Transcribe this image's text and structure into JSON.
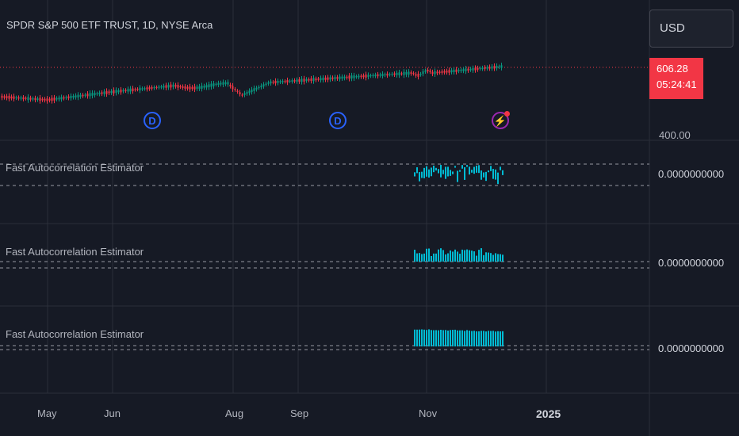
{
  "header": {
    "title": "SPDR S&P 500 ETF TRUST, 1D, NYSE Arca",
    "currency_button": "USD"
  },
  "price_axis": {
    "last_price": "606.28",
    "countdown": "05:24:41",
    "partial_tick": "400.00"
  },
  "events": [
    {
      "type": "dividend",
      "label": "D"
    },
    {
      "type": "dividend",
      "label": "D"
    },
    {
      "type": "earnings",
      "label": "⚡"
    }
  ],
  "indicator_panes": [
    {
      "title": "Fast Autocorrelation Estimator",
      "scale_value": "0.0000000000"
    },
    {
      "title": "Fast Autocorrelation Estimator",
      "scale_value": "0.0000000000"
    },
    {
      "title": "Fast Autocorrelation Estimator",
      "scale_value": "0.0000000000"
    }
  ],
  "time_axis": {
    "labels": [
      "May",
      "Jun",
      "Aug",
      "Sep",
      "Nov",
      "2025"
    ]
  },
  "colors": {
    "background": "#161a25",
    "up": "#089981",
    "down": "#f23645",
    "indicator": "#00bcd4",
    "grid": "#2a2e39",
    "dashed": "#9598a1"
  }
}
